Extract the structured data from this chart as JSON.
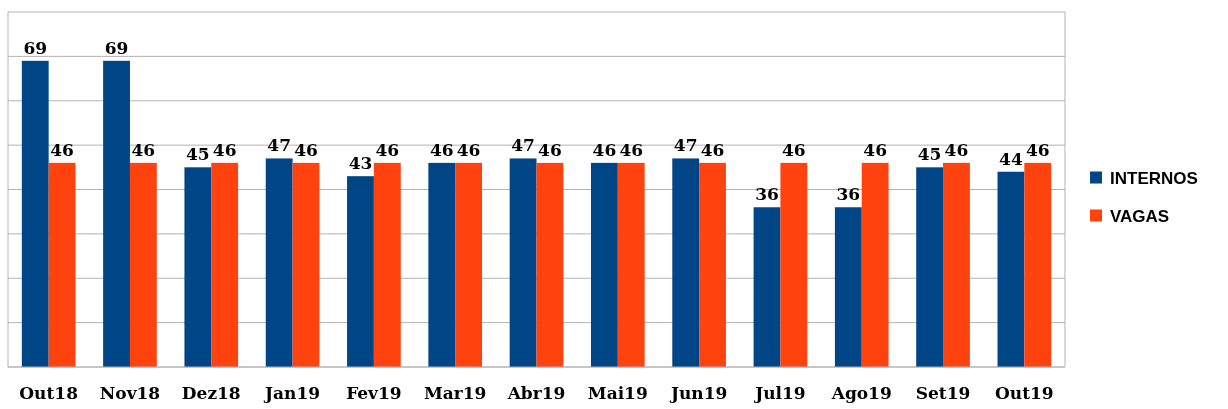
{
  "chart_data": {
    "type": "bar",
    "categories": [
      "Out18",
      "Nov18",
      "Dez18",
      "Jan19",
      "Fev19",
      "Mar19",
      "Abr19",
      "Mai19",
      "Jun19",
      "Jul19",
      "Ago19",
      "Set19",
      "Out19"
    ],
    "series": [
      {
        "name": "INTERNOS",
        "color": "#004586",
        "values": [
          69,
          69,
          45,
          47,
          43,
          46,
          47,
          46,
          47,
          36,
          36,
          45,
          44
        ]
      },
      {
        "name": "VAGAS",
        "color": "#ff420e",
        "values": [
          46,
          46,
          46,
          46,
          46,
          46,
          46,
          46,
          46,
          46,
          46,
          46,
          46
        ]
      }
    ],
    "ylim": [
      0,
      80
    ],
    "yticks": [
      {
        "value": 0,
        "label": null
      },
      {
        "value": 10,
        "label": null
      },
      {
        "value": 20,
        "label": null
      },
      {
        "value": 30,
        "label": null
      },
      {
        "value": 40,
        "label": null
      },
      {
        "value": 50,
        "label": null
      },
      {
        "value": 60,
        "label": null
      },
      {
        "value": 70,
        "label": null
      },
      {
        "value": 80,
        "label": null
      }
    ],
    "grid": "y",
    "data_labels": true,
    "legend": "right",
    "tick_labels": "x"
  }
}
